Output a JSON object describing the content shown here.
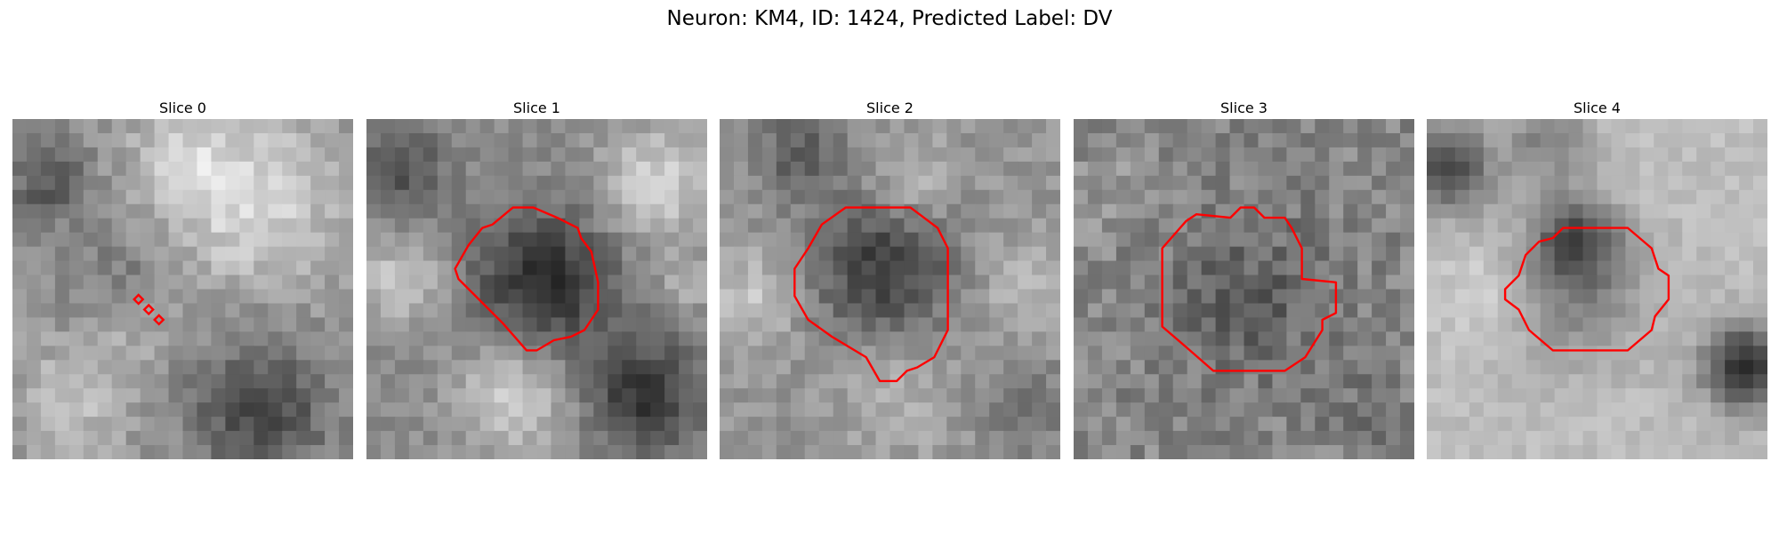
{
  "title": "Neuron: KM4, ID: 1424, Predicted Label: DV",
  "panels": [
    {
      "label": "Slice 0"
    },
    {
      "label": "Slice 1"
    },
    {
      "label": "Slice 2"
    },
    {
      "label": "Slice 3"
    },
    {
      "label": "Slice 4"
    }
  ],
  "colors": {
    "contour": "#ff0000",
    "background": "#ffffff"
  }
}
